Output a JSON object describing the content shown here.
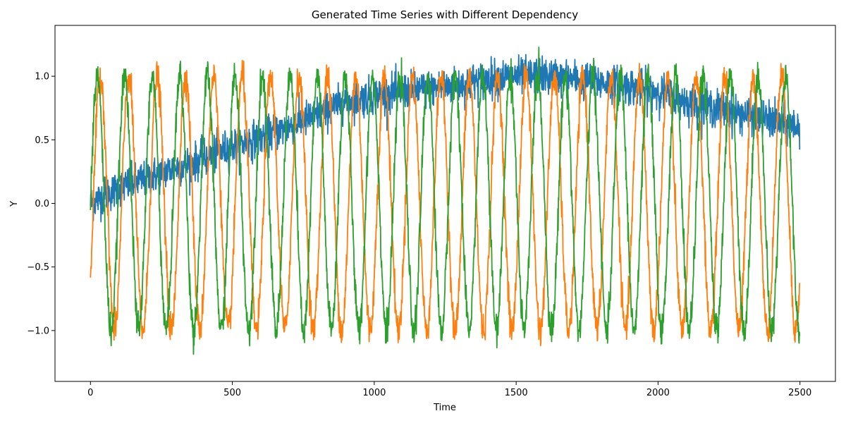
{
  "chart_data": {
    "type": "line",
    "title": "Generated Time Series with Different Dependency",
    "xlabel": "Time",
    "ylabel": "Y",
    "xlim": [
      -125,
      2625
    ],
    "ylim": [
      -1.4,
      1.4
    ],
    "xticks": [
      0,
      500,
      1000,
      1500,
      2000,
      2500
    ],
    "xtick_labels": [
      "0",
      "500",
      "1000",
      "1500",
      "2000",
      "2500"
    ],
    "yticks": [
      -1.0,
      -0.5,
      0.0,
      0.5,
      1.0
    ],
    "ytick_labels": [
      "−1.0",
      "−0.5",
      "0.0",
      "0.5",
      "1.0"
    ],
    "grid": false,
    "legend": "none",
    "n_points": 2500,
    "series": [
      {
        "color": "#1f77b4",
        "description": "trend with noise",
        "x": [
          0,
          100,
          200,
          300,
          400,
          500,
          600,
          700,
          800,
          900,
          1000,
          1100,
          1200,
          1300,
          1400,
          1500,
          1600,
          1700,
          1800,
          1900,
          2000,
          2100,
          2200,
          2300,
          2400,
          2500
        ],
        "values": [
          0.0,
          0.12,
          0.2,
          0.28,
          0.35,
          0.45,
          0.52,
          0.6,
          0.7,
          0.8,
          0.85,
          0.88,
          0.9,
          0.93,
          0.98,
          1.0,
          1.0,
          0.98,
          0.95,
          0.92,
          0.88,
          0.8,
          0.75,
          0.7,
          0.65,
          0.6
        ],
        "noise_amplitude": 0.12
      },
      {
        "color": "#ff7f0e",
        "description": "sinusoid, period ~100",
        "amplitude": 1.0,
        "period": 100,
        "phase_offset_time": 10,
        "noise_amplitude": 0.12
      },
      {
        "color": "#2ca02c",
        "description": "sinusoid, period ~97",
        "amplitude": 1.0,
        "period": 97,
        "phase_offset_time": 0,
        "noise_amplitude": 0.12
      }
    ]
  }
}
